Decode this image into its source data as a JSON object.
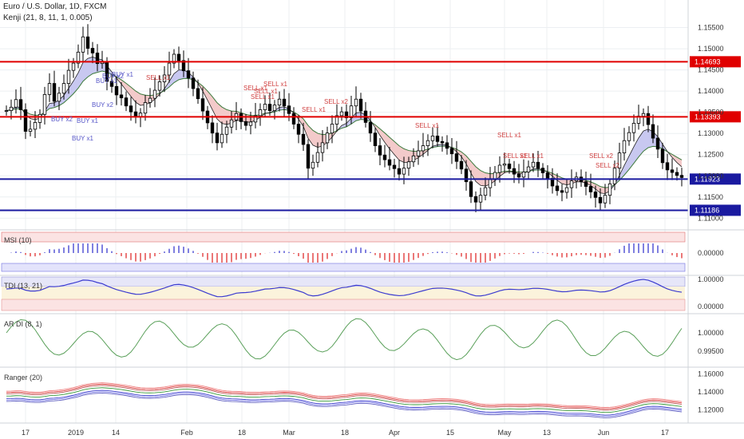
{
  "header": {
    "symbol": "Euro / U.S. Dollar, 1D, FXCM",
    "indicator": "Kenji (21, 8, 11, 1, 0.005)"
  },
  "panes": {
    "msi": "MSI (10)",
    "tdi": "TDI (13, 21)",
    "ardi": "AR DI (8, 1)",
    "ranger": "Ranger (20)"
  },
  "chart_data": [
    {
      "type": "candlestick",
      "title": "Euro / U.S. Dollar, 1D, FXCM",
      "ylim": [
        1.1078,
        1.16
      ],
      "y_ticks": [
        "1.15500",
        "1.15000",
        "1.14500",
        "1.14000",
        "1.13500",
        "1.13000",
        "1.12500",
        "1.12000",
        "1.11500",
        "1.11000"
      ],
      "x_ticks": [
        "17",
        "2019",
        "14",
        "Feb",
        "18",
        "Mar",
        "18",
        "Apr",
        "15",
        "May",
        "13",
        "Jun",
        "17"
      ],
      "horizontal_levels": [
        {
          "value": 1.14693,
          "label": "1.14693",
          "color": "#e00000"
        },
        {
          "value": 1.13393,
          "label": "1.13393",
          "color": "#e00000"
        },
        {
          "value": 1.11923,
          "label": "1.11923",
          "color": "#1a1aa0"
        },
        {
          "value": 1.11186,
          "label": "1.11186",
          "color": "#1a1aa0"
        }
      ],
      "close": [
        1.1354,
        1.1362,
        1.138,
        1.1356,
        1.1305,
        1.131,
        1.1326,
        1.1345,
        1.1392,
        1.1418,
        1.1376,
        1.1395,
        1.1418,
        1.1449,
        1.1466,
        1.1492,
        1.1528,
        1.1501,
        1.149,
        1.1465,
        1.1468,
        1.1423,
        1.1411,
        1.1391,
        1.1384,
        1.1365,
        1.1351,
        1.1339,
        1.1348,
        1.1373,
        1.1383,
        1.1402,
        1.1422,
        1.1438,
        1.1466,
        1.1487,
        1.1472,
        1.1448,
        1.1431,
        1.1406,
        1.1382,
        1.1353,
        1.1325,
        1.1301,
        1.1278,
        1.1298,
        1.1315,
        1.1332,
        1.1347,
        1.1328,
        1.1319,
        1.1327,
        1.1342,
        1.1356,
        1.1369,
        1.1354,
        1.1367,
        1.1381,
        1.1365,
        1.1347,
        1.1322,
        1.1298,
        1.1274,
        1.1218,
        1.1232,
        1.1255,
        1.1278,
        1.1301,
        1.1322,
        1.1342,
        1.1351,
        1.1337,
        1.1365,
        1.1381,
        1.1353,
        1.1326,
        1.1301,
        1.1271,
        1.1249,
        1.1238,
        1.1225,
        1.1217,
        1.1204,
        1.1218,
        1.1233,
        1.1247,
        1.1259,
        1.1271,
        1.1283,
        1.1294,
        1.1281,
        1.1278,
        1.1265,
        1.1252,
        1.1234,
        1.1216,
        1.1186,
        1.1151,
        1.1138,
        1.1154,
        1.1172,
        1.1191,
        1.1208,
        1.1225,
        1.1228,
        1.1217,
        1.1204,
        1.1197,
        1.1209,
        1.1221,
        1.1232,
        1.1218,
        1.1207,
        1.1194,
        1.1176,
        1.1165,
        1.1161,
        1.1172,
        1.1188,
        1.1197,
        1.1186,
        1.1175,
        1.1162,
        1.1149,
        1.1136,
        1.1154,
        1.1181,
        1.1218,
        1.1254,
        1.1283,
        1.1302,
        1.1324,
        1.1341,
        1.1347,
        1.1321,
        1.1289,
        1.1263,
        1.1231,
        1.1214,
        1.1208,
        1.1201,
        1.1196
      ],
      "kenji_fast_ylim": [
        1.1078,
        1.16
      ],
      "msi_ylim": [
        -0.6,
        0.6
      ],
      "msi_ticks": [
        "0.00000"
      ],
      "tdi_ticks": [
        "1.00000",
        "0.00000"
      ],
      "ardi_ticks": [
        "1.00000",
        "0.99500"
      ],
      "ranger_ticks": [
        "1.16000",
        "1.14000",
        "1.12000"
      ],
      "annotations_buy": [
        "BUY x1",
        "BUY x2",
        "BUY x1",
        "BUY x1",
        "BUY x2",
        "BUY x1",
        "BUY x2"
      ],
      "annotations_sell": [
        "SELL x1",
        "SELL x1",
        "SELL x1",
        "SELL x1",
        "SELL x1",
        "SELL x1",
        "SELL x2",
        "SELL x1",
        "SELL x1",
        "SELL x1",
        "SELL x1",
        "SELL x2",
        "SELL x2"
      ]
    }
  ],
  "colors": {
    "up": "#ffffff",
    "down": "#000000",
    "red_line": "#e00000",
    "blue_line": "#1a1aa0",
    "ma_fill_bull": "#c8c8f0",
    "ma_fill_bear": "#f3caca",
    "grid": "#eceff2",
    "buy_text": "#5656c8",
    "sell_text": "#d04040",
    "msi_up": "#3b3bd0",
    "msi_down": "#e03030",
    "tdi_blue": "#3c3cd0",
    "tdi_red": "#e03a3a",
    "tdi_green": "#4a9a4a",
    "ar_green": "#5aa05a",
    "ar_red": "#e03a3a",
    "ar_blue": "#4040d0"
  }
}
